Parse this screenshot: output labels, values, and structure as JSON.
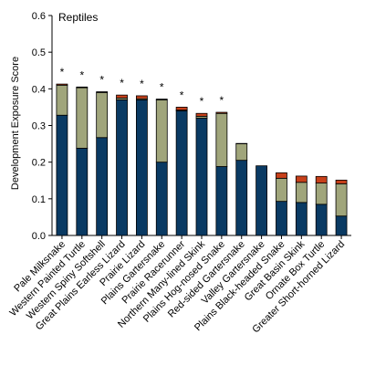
{
  "chart_data": {
    "type": "bar",
    "stacked": true,
    "title": "Reptiles",
    "xlabel": "",
    "ylabel": "Development Exposure Score",
    "ylim": [
      0,
      0.6
    ],
    "yticks": [
      0.0,
      0.1,
      0.2,
      0.3,
      0.4,
      0.5,
      0.6
    ],
    "grid": false,
    "categories": [
      "Pale Milksnake",
      "Western Painted Turtle",
      "Western Spiny Softshell",
      "Great Plains Earless Lizard",
      "Prairie Lizard",
      "Plains Gartersnake",
      "Prairie Racerunner",
      "Northern Many-lined Skink",
      "Plains Hog-nosed Snake",
      "Red-sided Gartersnake",
      "Valley Gartersnake",
      "Plains Black-headed Snake",
      "Great Basin Skink",
      "Ornate Box Turtle",
      "Greater Short-horned Lizard"
    ],
    "significance": [
      "*",
      "*",
      "*",
      "*",
      "*",
      "*",
      "*",
      "*",
      "*",
      "",
      "",
      "",
      "",
      "",
      ""
    ],
    "series": [
      {
        "color": "#0a3a63",
        "values": [
          0.328,
          0.238,
          0.267,
          0.37,
          0.37,
          0.2,
          0.34,
          0.32,
          0.188,
          0.205,
          0.19,
          0.093,
          0.09,
          0.085,
          0.053
        ]
      },
      {
        "color": "#a0a57b",
        "values": [
          0.082,
          0.165,
          0.123,
          0.005,
          0.003,
          0.17,
          0.002,
          0.005,
          0.145,
          0.045,
          0.0,
          0.063,
          0.055,
          0.058,
          0.088
        ]
      },
      {
        "color": "#c7401a",
        "values": [
          0.003,
          0.002,
          0.002,
          0.008,
          0.008,
          0.002,
          0.008,
          0.008,
          0.003,
          0.001,
          0.0,
          0.015,
          0.017,
          0.018,
          0.01
        ]
      }
    ]
  }
}
